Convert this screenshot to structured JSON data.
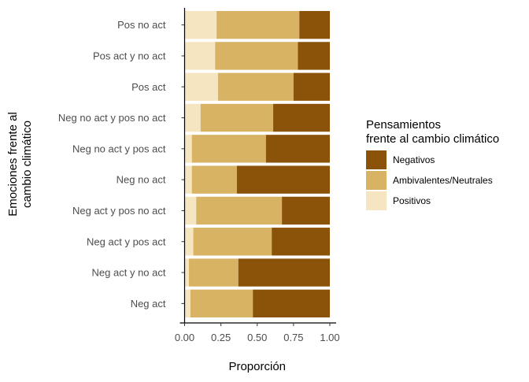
{
  "chart_data": {
    "type": "bar",
    "orientation": "horizontal",
    "stacked": "percent",
    "xlabel": "Proporción",
    "ylabel_lines": [
      "Emociones frente al",
      "cambio climático"
    ],
    "xlim": [
      0,
      1
    ],
    "xticks": [
      "0.00",
      "0.25",
      "0.50",
      "0.75",
      "1.00"
    ],
    "xtick_values": [
      0,
      0.25,
      0.5,
      0.75,
      1.0
    ],
    "categories": [
      "Pos no act",
      "Pos act y no act",
      "Pos act",
      "Neg no act y pos no act",
      "Neg no act y pos act",
      "Neg no act",
      "Neg act y pos no act",
      "Neg act y pos act",
      "Neg act y no act",
      "Neg act"
    ],
    "series": [
      {
        "name": "Positivos",
        "color": "#F5E6C1",
        "values": [
          0.22,
          0.21,
          0.23,
          0.11,
          0.05,
          0.05,
          0.08,
          0.06,
          0.03,
          0.04
        ]
      },
      {
        "name": "Ambivalentes/Neutrales",
        "color": "#D9B364",
        "values": [
          0.57,
          0.57,
          0.52,
          0.5,
          0.51,
          0.31,
          0.59,
          0.54,
          0.34,
          0.43
        ]
      },
      {
        "name": "Negativos",
        "color": "#8B5209",
        "values": [
          0.21,
          0.22,
          0.25,
          0.39,
          0.44,
          0.64,
          0.33,
          0.4,
          0.63,
          0.53
        ]
      }
    ],
    "legend": {
      "title_lines": [
        "Pensamientos",
        "frente al cambio climático"
      ],
      "order": [
        "Negativos",
        "Ambivalentes/Neutrales",
        "Positivos"
      ],
      "position": "right"
    },
    "grid": false
  }
}
